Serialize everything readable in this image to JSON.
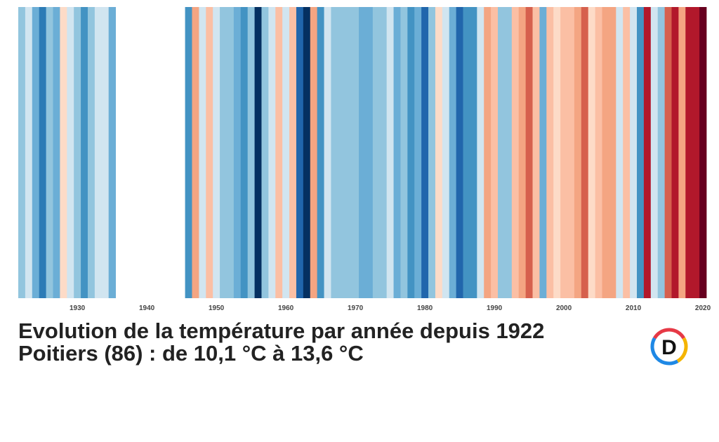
{
  "chart_data": {
    "type": "heatmap",
    "subtype": "warming-stripes",
    "title": "Evolution de la température par année depuis 1922",
    "subtitle": "Poitiers (86) : de 10,1 °C à 13,6 °C",
    "x_range": [
      1922,
      2020
    ],
    "xticks": [
      1930,
      1940,
      1950,
      1960,
      1970,
      1980,
      1990,
      2000,
      2010,
      2020
    ],
    "missing_years": [
      1936,
      1937,
      1938,
      1939,
      1940,
      1941,
      1942,
      1943,
      1944,
      1945
    ],
    "years": [
      1922,
      1923,
      1924,
      1925,
      1926,
      1927,
      1928,
      1929,
      1930,
      1931,
      1932,
      1933,
      1934,
      1935,
      1946,
      1947,
      1948,
      1949,
      1950,
      1951,
      1952,
      1953,
      1954,
      1955,
      1956,
      1957,
      1958,
      1959,
      1960,
      1961,
      1962,
      1963,
      1964,
      1965,
      1966,
      1967,
      1968,
      1969,
      1970,
      1971,
      1972,
      1973,
      1974,
      1975,
      1976,
      1977,
      1978,
      1979,
      1980,
      1981,
      1982,
      1983,
      1984,
      1985,
      1986,
      1987,
      1988,
      1989,
      1990,
      1991,
      1992,
      1993,
      1994,
      1995,
      1996,
      1997,
      1998,
      1999,
      2000,
      2001,
      2002,
      2003,
      2004,
      2005,
      2006,
      2007,
      2008,
      2009,
      2010,
      2011,
      2012,
      2013,
      2014,
      2015,
      2016,
      2017,
      2018,
      2019,
      2020
    ],
    "colors": [
      "#92c5de",
      "#d1e5f0",
      "#6baed6",
      "#2c7bb6",
      "#92c5de",
      "#6baed6",
      "#fddbc7",
      "#d1e5f0",
      "#92c5de",
      "#4393c3",
      "#92c5de",
      "#d1e5f0",
      "#d1e5f0",
      "#6baed6",
      "#4393c3",
      "#f4a582",
      "#d1e5f0",
      "#fbbfa4",
      "#d1e5f0",
      "#92c5de",
      "#92c5de",
      "#6baed6",
      "#4393c3",
      "#92c5de",
      "#053061",
      "#92c5de",
      "#d1e5f0",
      "#fbbfa4",
      "#d1e5f0",
      "#fbbfa4",
      "#2166ac",
      "#053061",
      "#f4a582",
      "#4393c3",
      "#d1e5f0",
      "#92c5de",
      "#92c5de",
      "#92c5de",
      "#92c5de",
      "#6baed6",
      "#6baed6",
      "#92c5de",
      "#92c5de",
      "#d1e5f0",
      "#6baed6",
      "#92c5de",
      "#4393c3",
      "#6baed6",
      "#2166ac",
      "#92c5de",
      "#fddbc7",
      "#d1e5f0",
      "#6baed6",
      "#2166ac",
      "#4393c3",
      "#4393c3",
      "#d1e5f0",
      "#f4a582",
      "#fbbfa4",
      "#92c5de",
      "#92c5de",
      "#fbbfa4",
      "#f4a582",
      "#d6604d",
      "#fbbfa4",
      "#6baed6",
      "#fbbfa4",
      "#fddbc7",
      "#fbbfa4",
      "#fbbfa4",
      "#f4a582",
      "#d6604d",
      "#fddbc7",
      "#fbbfa4",
      "#f4a582",
      "#f4a582",
      "#d1e5f0",
      "#fbbfa4",
      "#d1e5f0",
      "#4393c3",
      "#b2182b",
      "#d1e5f0",
      "#92c5de",
      "#d6604d",
      "#b2182b",
      "#f4a582",
      "#b2182b",
      "#b2182b",
      "#67001f"
    ]
  },
  "logo": {
    "letter": "D",
    "colors": [
      "#e63946",
      "#f4b400",
      "#1e88e5"
    ]
  }
}
